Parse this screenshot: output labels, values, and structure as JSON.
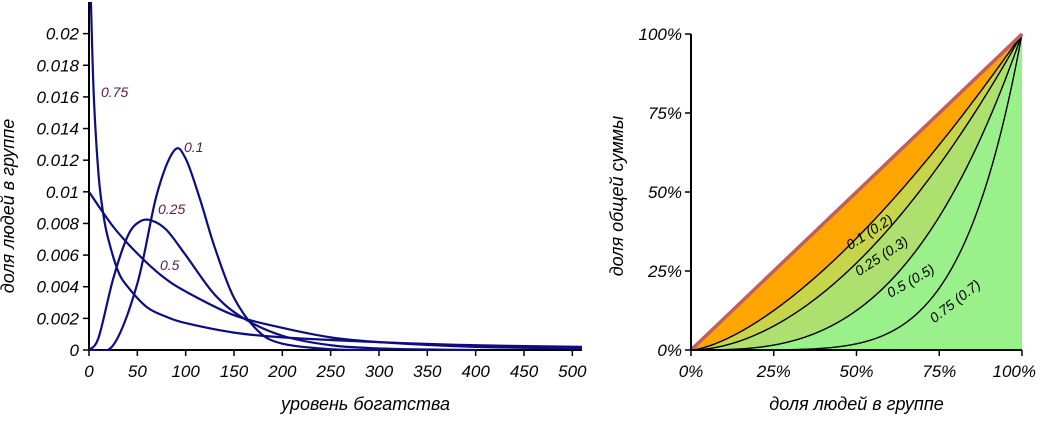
{
  "chart_data": [
    {
      "type": "line",
      "xlabel": "уровень богатства",
      "ylabel": "доля людей в группе",
      "xlim": [
        0,
        510
      ],
      "ylim": [
        0,
        0.022
      ],
      "x_ticks": [
        "0",
        "50",
        "100",
        "150",
        "200",
        "250",
        "300",
        "350",
        "400",
        "450",
        "500"
      ],
      "y_ticks": [
        "0",
        "0.002",
        "0.004",
        "0.006",
        "0.008",
        "0.01",
        "0.012",
        "0.014",
        "0.016",
        "0.018",
        "0.02"
      ],
      "line_color": "#0d0d80",
      "series": [
        {
          "name": "0.1",
          "x": [
            0,
            25,
            50,
            70,
            88,
            100,
            115,
            130,
            150,
            175,
            200,
            250,
            300
          ],
          "y": [
            0,
            0.0003,
            0.0042,
            0.0098,
            0.0126,
            0.0121,
            0.0095,
            0.0065,
            0.0033,
            0.0012,
            0.0004,
            5e-05,
            0
          ]
        },
        {
          "name": "0.25",
          "x": [
            0,
            10,
            25,
            40,
            52,
            64,
            80,
            100,
            130,
            160,
            200,
            250,
            300,
            350,
            400
          ],
          "y": [
            0,
            0.0008,
            0.0045,
            0.0072,
            0.0081,
            0.0082,
            0.0076,
            0.006,
            0.0035,
            0.002,
            0.0009,
            0.0003,
            0.0001,
            3e-05,
            0
          ]
        },
        {
          "name": "0.5",
          "x": [
            0,
            25,
            50,
            75,
            100,
            150,
            200,
            250,
            300,
            400,
            510
          ],
          "y": [
            0.01,
            0.0078,
            0.0061,
            0.0047,
            0.0037,
            0.0022,
            0.0014,
            0.0008,
            0.0005,
            0.0002,
            0.0001
          ]
        },
        {
          "name": "0.75",
          "x": [
            2,
            5,
            10,
            15,
            20,
            30,
            40,
            60,
            80,
            100,
            150,
            200,
            300,
            400,
            510
          ],
          "y": [
            0.022,
            0.016,
            0.011,
            0.0085,
            0.007,
            0.005,
            0.004,
            0.0027,
            0.0021,
            0.0017,
            0.0011,
            0.0008,
            0.0005,
            0.0003,
            0.0002
          ]
        }
      ]
    },
    {
      "type": "area",
      "xlabel": "доля людей в группе",
      "ylabel": "доля общей суммы",
      "xlim": [
        0,
        100
      ],
      "ylim": [
        0,
        100
      ],
      "x_ticks": [
        "0%",
        "25%",
        "50%",
        "75%",
        "100%"
      ],
      "y_ticks": [
        "0%",
        "25%",
        "50%",
        "75%",
        "100%"
      ],
      "equality_line_color": "#c0605a",
      "fill_colors": [
        "#ffa500",
        "#c6d54a",
        "#aee070",
        "#9af08a"
      ],
      "series": [
        {
          "name": "0.1 (0.2)",
          "exponent": 1.5
        },
        {
          "name": "0.25 (0.3)",
          "exponent": 1.86
        },
        {
          "name": "0.5 (0.5)",
          "exponent": 3.0
        },
        {
          "name": "0.75 (0.7)",
          "exponent": 5.67
        }
      ]
    }
  ]
}
